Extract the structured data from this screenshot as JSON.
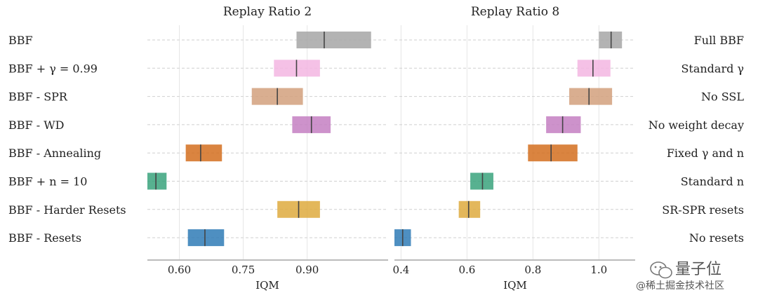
{
  "chart_data": [
    {
      "type": "interval",
      "title": "Replay Ratio 2",
      "xlabel": "IQM",
      "xlim": [
        0.525,
        1.09
      ],
      "xticks": [
        0.6,
        0.75,
        0.9
      ],
      "xtick_labels": [
        "0.60",
        "0.75",
        "0.90"
      ],
      "grid": true,
      "categories": [
        "BBF",
        "BBF + γ = 0.99",
        "BBF - SPR",
        "BBF - WD",
        "BBF - Annealing",
        "BBF + n = 10",
        "BBF - Harder Resets",
        "BBF - Resets"
      ],
      "series": [
        {
          "low": 0.875,
          "median": 0.94,
          "high": 1.05,
          "color": "#a6a6a6"
        },
        {
          "low": 0.822,
          "median": 0.875,
          "high": 0.93,
          "color": "#f3b6e2"
        },
        {
          "low": 0.77,
          "median": 0.83,
          "high": 0.89,
          "color": "#d2a07c"
        },
        {
          "low": 0.865,
          "median": 0.91,
          "high": 0.955,
          "color": "#c47fc2"
        },
        {
          "low": 0.615,
          "median": 0.65,
          "high": 0.7,
          "color": "#d46f1f"
        },
        {
          "low": 0.525,
          "median": 0.545,
          "high": 0.57,
          "color": "#3aa37d"
        },
        {
          "low": 0.83,
          "median": 0.88,
          "high": 0.93,
          "color": "#deaa3e"
        },
        {
          "low": 0.62,
          "median": 0.66,
          "high": 0.705,
          "color": "#2f7bb6"
        }
      ]
    },
    {
      "type": "interval",
      "title": "Replay Ratio 8",
      "xlabel": "IQM",
      "xlim": [
        0.38,
        1.11
      ],
      "xticks": [
        0.4,
        0.6,
        0.8,
        1.0
      ],
      "xtick_labels": [
        "0.4",
        "0.6",
        "0.8",
        "1.0"
      ],
      "grid": true,
      "categories": [
        "Full BBF",
        "Standard γ",
        "No SSL",
        "No weight decay",
        "Fixed γ and n",
        "Standard n",
        "SR-SPR resets",
        "No resets"
      ],
      "series": [
        {
          "low": 1.0,
          "median": 1.037,
          "high": 1.07,
          "color": "#a6a6a6"
        },
        {
          "low": 0.935,
          "median": 0.982,
          "high": 1.035,
          "color": "#f3b6e2"
        },
        {
          "low": 0.91,
          "median": 0.97,
          "high": 1.04,
          "color": "#d2a07c"
        },
        {
          "low": 0.84,
          "median": 0.89,
          "high": 0.945,
          "color": "#c47fc2"
        },
        {
          "low": 0.785,
          "median": 0.855,
          "high": 0.935,
          "color": "#d46f1f"
        },
        {
          "low": 0.61,
          "median": 0.647,
          "high": 0.68,
          "color": "#3aa37d"
        },
        {
          "low": 0.575,
          "median": 0.605,
          "high": 0.64,
          "color": "#deaa3e"
        },
        {
          "low": 0.38,
          "median": 0.405,
          "high": 0.43,
          "color": "#2f7bb6"
        }
      ]
    }
  ],
  "watermark": {
    "line1": "量子位",
    "line2": "@稀土掘金技术社区"
  }
}
